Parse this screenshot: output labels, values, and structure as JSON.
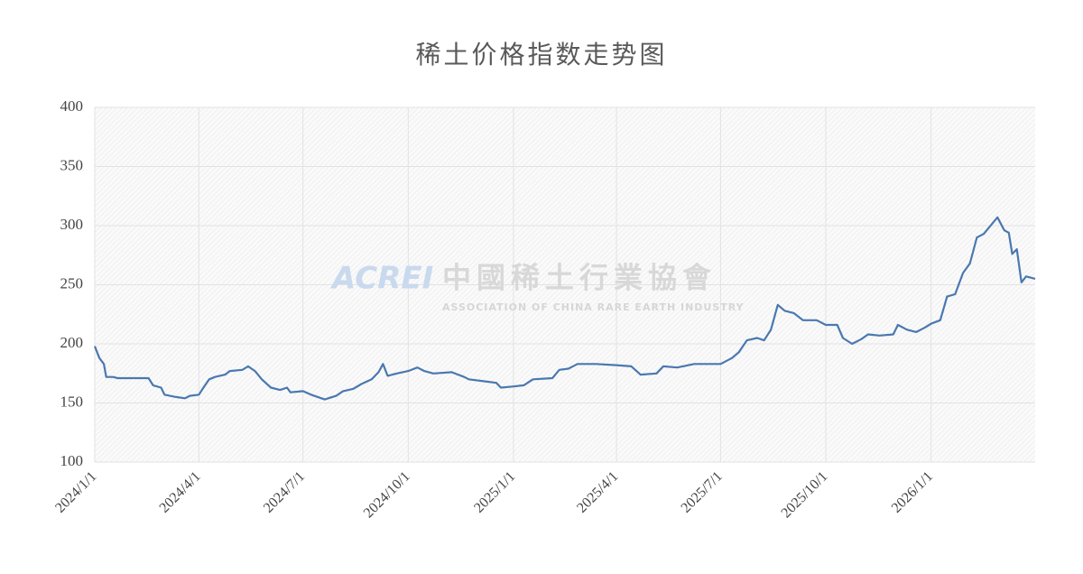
{
  "chart_data": {
    "type": "line",
    "title": "稀土价格指数走势图",
    "annotations": [
      "ACREI",
      "中國稀土行業協會",
      "ASSOCIATION OF CHINA RARE EARTH INDUSTRY"
    ],
    "x": [
      "2024/1/1",
      "2024/1/5",
      "2024/1/9",
      "2024/1/11",
      "2024/1/17",
      "2024/1/21",
      "2024/2/17",
      "2024/2/21",
      "2024/2/28",
      "2024/3/2",
      "2024/3/12",
      "2024/3/20",
      "2024/3/24",
      "2024/4/1",
      "2024/4/5",
      "2024/4/10",
      "2024/4/15",
      "2024/4/24",
      "2024/4/28",
      "2024/5/9",
      "2024/5/14",
      "2024/5/20",
      "2024/5/26",
      "2024/6/3",
      "2024/6/11",
      "2024/6/17",
      "2024/6/20",
      "2024/7/1",
      "2024/7/8",
      "2024/7/20",
      "2024/7/30",
      "2024/8/5",
      "2024/8/14",
      "2024/8/21",
      "2024/8/30",
      "2024/9/5",
      "2024/9/9",
      "2024/9/13",
      "2024/9/21",
      "2024/10/1",
      "2024/10/9",
      "2024/10/15",
      "2024/10/23",
      "2024/11/8",
      "2024/11/19",
      "2024/11/23",
      "2024/12/9",
      "2024/12/17",
      "2024/12/21",
      "2025/1/1",
      "2025/1/10",
      "2025/1/18",
      "2025/2/4",
      "2025/2/10",
      "2025/2/18",
      "2025/2/26",
      "2025/3/14",
      "2025/4/1",
      "2025/4/14",
      "2025/4/22",
      "2025/5/6",
      "2025/5/12",
      "2025/5/24",
      "2025/6/8",
      "2025/7/1",
      "2025/7/11",
      "2025/7/17",
      "2025/7/24",
      "2025/8/2",
      "2025/8/8",
      "2025/8/14",
      "2025/8/20",
      "2025/8/26",
      "2025/9/3",
      "2025/9/11",
      "2025/9/23",
      "2025/10/1",
      "2025/10/11",
      "2025/10/16",
      "2025/10/24",
      "2025/11/1",
      "2025/11/7",
      "2025/11/17",
      "2025/11/29",
      "2025/12/3",
      "2025/12/11",
      "2025/12/19",
      "2025/12/27",
      "2026/1/1",
      "2026/1/9",
      "2026/1/15",
      "2026/1/22",
      "2026/1/29",
      "2026/2/4",
      "2026/2/10",
      "2026/2/16",
      "2026/2/28",
      "2026/3/6",
      "2026/3/10",
      "2026/3/13",
      "2026/3/17",
      "2026/3/21",
      "2026/3/25",
      "2026/4/2"
    ],
    "series": [
      {
        "name": "稀土价格指数",
        "color": "#4a78b0",
        "values": [
          198,
          188,
          183,
          172,
          172,
          171,
          171,
          165,
          163,
          157,
          155,
          154,
          156,
          157,
          163,
          170,
          172,
          174,
          177,
          178,
          181,
          177,
          170,
          163,
          161,
          163,
          159,
          160,
          157,
          153,
          156,
          160,
          162,
          166,
          170,
          176,
          183,
          173,
          175,
          177,
          180,
          177,
          175,
          176,
          172,
          170,
          168,
          167,
          163,
          164,
          165,
          170,
          171,
          178,
          179,
          183,
          183,
          182,
          181,
          174,
          175,
          181,
          180,
          183,
          183,
          188,
          193,
          203,
          205,
          203,
          212,
          233,
          228,
          226,
          220,
          220,
          216,
          216,
          205,
          200,
          204,
          208,
          207,
          208,
          216,
          212,
          210,
          214,
          217,
          220,
          240,
          242,
          260,
          268,
          290,
          293,
          307,
          296,
          294,
          276,
          280,
          252,
          257,
          255
        ]
      }
    ],
    "xlim": [
      "2024/1/1",
      "2026/4/2"
    ],
    "xticks": [
      "2024/1/1",
      "2024/4/1",
      "2024/7/1",
      "2024/10/1",
      "2025/1/1",
      "2025/4/1",
      "2025/7/1",
      "2025/10/1",
      "2026/1/1"
    ],
    "ylim": [
      100,
      400
    ],
    "yticks": [
      100,
      150,
      200,
      250,
      300,
      350,
      400
    ],
    "grid": true
  }
}
